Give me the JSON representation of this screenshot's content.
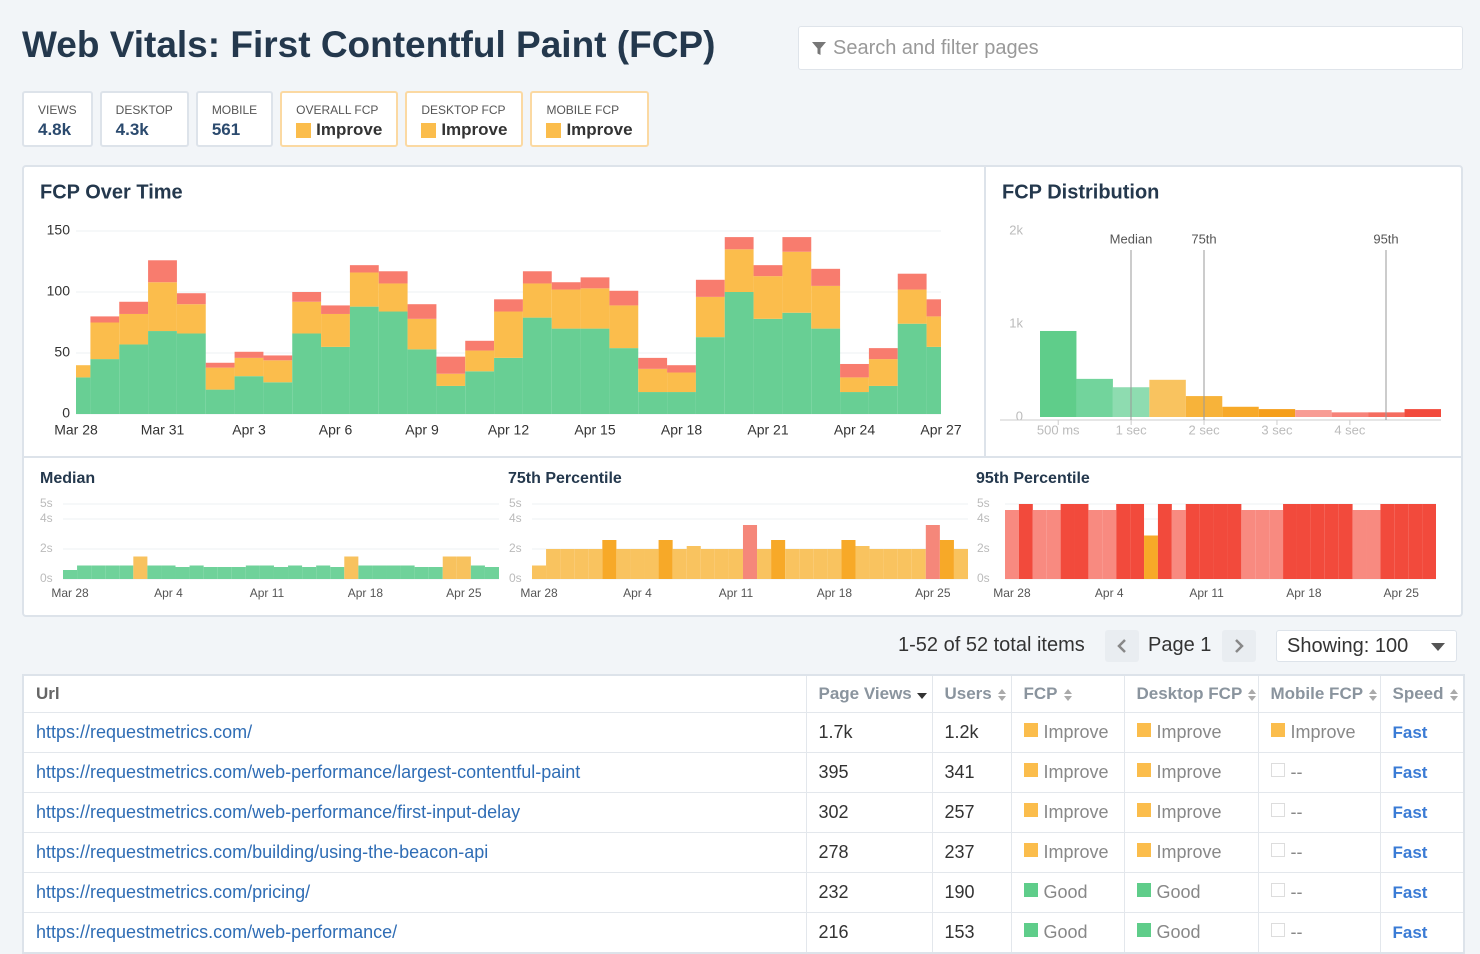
{
  "header": {
    "title": "Web Vitals: First Contentful Paint (FCP)",
    "search_placeholder": "Search and filter pages"
  },
  "stats": [
    {
      "label": "VIEWS",
      "value": "4.8k"
    },
    {
      "label": "DESKTOP",
      "value": "4.3k"
    },
    {
      "label": "MOBILE",
      "value": 561
    },
    {
      "label": "OVERALL FCP",
      "value": "Improve",
      "color": "#fbbd4c"
    },
    {
      "label": "DESKTOP FCP",
      "value": "Improve",
      "color": "#fbbd4c"
    },
    {
      "label": "MOBILE FCP",
      "value": "Improve",
      "color": "#fbbd4c"
    }
  ],
  "charts": [
    {
      "type": "bar",
      "stacked": true,
      "title": "FCP Over Time",
      "grid": true,
      "categories": [
        "Mar 28",
        null,
        null,
        "Mar 31",
        null,
        null,
        "Apr 3",
        null,
        null,
        "Apr 6",
        null,
        null,
        "Apr 9",
        null,
        null,
        "Apr 12",
        null,
        null,
        "Apr 15",
        null,
        null,
        "Apr 18",
        null,
        null,
        "Apr 21",
        null,
        null,
        "Apr 24",
        null,
        null,
        "Apr 27"
      ],
      "series": [
        {
          "color": "#68cf94",
          "values": [
            30,
            45,
            57,
            68,
            66,
            20,
            31,
            26,
            66,
            55,
            88,
            84,
            53,
            23,
            35,
            46,
            79,
            70,
            70,
            54,
            18,
            18,
            63,
            100,
            78,
            83,
            70,
            18,
            23,
            74,
            55
          ]
        },
        {
          "color": "#fbbd4c",
          "values": [
            10,
            30,
            25,
            40,
            24,
            18,
            15,
            18,
            26,
            27,
            28,
            23,
            25,
            10,
            17,
            38,
            28,
            32,
            33,
            35,
            19,
            16,
            33,
            35,
            35,
            50,
            35,
            12,
            22,
            28,
            25
          ]
        },
        {
          "color": "#f87c6e",
          "values": [
            0,
            5,
            10,
            18,
            9,
            4,
            5,
            4,
            8,
            7,
            6,
            10,
            12,
            14,
            8,
            10,
            10,
            6,
            9,
            12,
            9,
            6,
            14,
            10,
            9,
            12,
            14,
            11,
            9,
            13,
            14
          ]
        }
      ],
      "ylim": [
        0,
        150
      ],
      "yticks": [
        0,
        50,
        100,
        150
      ]
    },
    {
      "type": "bar",
      "title": "FCP Distribution",
      "grid": false,
      "categories": [
        "500 ms",
        null,
        "1 sec",
        null,
        "2 sec",
        null,
        "3 sec",
        null,
        "4 sec",
        null,
        null
      ],
      "values": [
        925,
        410,
        320,
        400,
        225,
        110,
        85,
        75,
        50,
        50,
        85
      ],
      "colors": [
        "#5fcd8a",
        "#72d49c",
        "#8edcb0",
        "#f9c35f",
        "#f7b33a",
        "#f7a928",
        "#f59e1a",
        "#f89c94",
        "#f7837a",
        "#f56d60",
        "#f24a3c"
      ],
      "ylim": [
        0,
        2000
      ],
      "yticks": [
        0,
        {
          "value": 1000,
          "label": "1k"
        },
        {
          "value": 2000,
          "label": "2k"
        }
      ],
      "annotations": [
        "Median",
        "75th",
        "95th"
      ]
    },
    {
      "type": "bar",
      "title": "Median",
      "grid": true,
      "categories": [
        "Mar 28",
        null,
        null,
        null,
        null,
        null,
        null,
        "Apr 4",
        null,
        null,
        null,
        null,
        null,
        null,
        "Apr 11",
        null,
        null,
        null,
        null,
        null,
        null,
        "Apr 18",
        null,
        null,
        null,
        null,
        null,
        null,
        "Apr 25",
        null,
        null
      ],
      "values": [
        0.6,
        0.9,
        0.9,
        0.9,
        0.9,
        1.5,
        0.9,
        0.9,
        0.8,
        0.9,
        0.8,
        0.8,
        0.8,
        0.9,
        0.9,
        0.8,
        0.9,
        0.8,
        0.9,
        0.8,
        1.5,
        0.9,
        0.9,
        0.9,
        0.9,
        0.8,
        0.8,
        1.5,
        1.5,
        0.9,
        0.8
      ],
      "colors": [
        "#6fd29a",
        "#6fd29a",
        "#6fd29a",
        "#6fd29a",
        "#6fd29a",
        "#f8c25e",
        "#6fd29a",
        "#6fd29a",
        "#6fd29a",
        "#6fd29a",
        "#6fd29a",
        "#6fd29a",
        "#6fd29a",
        "#6fd29a",
        "#6fd29a",
        "#6fd29a",
        "#6fd29a",
        "#6fd29a",
        "#6fd29a",
        "#6fd29a",
        "#f8c25e",
        "#6fd29a",
        "#6fd29a",
        "#6fd29a",
        "#6fd29a",
        "#6fd29a",
        "#6fd29a",
        "#f8c25e",
        "#f8c25e",
        "#6fd29a",
        "#6fd29a"
      ],
      "ylim": [
        0,
        5
      ],
      "yticks": [
        {
          "value": 0,
          "label": "0s"
        },
        {
          "value": 2,
          "label": "2s"
        },
        {
          "value": 4,
          "label": "4s"
        },
        {
          "value": 5,
          "label": "5s"
        }
      ]
    },
    {
      "type": "bar",
      "title": "75th Percentile",
      "grid": true,
      "categories": [
        "Mar 28",
        null,
        null,
        null,
        null,
        null,
        null,
        "Apr 4",
        null,
        null,
        null,
        null,
        null,
        null,
        "Apr 11",
        null,
        null,
        null,
        null,
        null,
        null,
        "Apr 18",
        null,
        null,
        null,
        null,
        null,
        null,
        "Apr 25",
        null,
        null
      ],
      "values": [
        0.9,
        2.0,
        2.0,
        2.0,
        2.0,
        2.6,
        2.0,
        2.0,
        2.0,
        2.6,
        2.0,
        2.2,
        2.0,
        2.0,
        2.0,
        3.6,
        2.0,
        2.6,
        2.0,
        2.0,
        2.0,
        2.0,
        2.6,
        2.2,
        2.0,
        2.0,
        2.0,
        2.0,
        3.6,
        2.6,
        2.0
      ],
      "colors": [
        "#f9c35f",
        "#f9c35f",
        "#f9c35f",
        "#f9c35f",
        "#f9c35f",
        "#f7a928",
        "#f9c35f",
        "#f9c35f",
        "#f9c35f",
        "#f7a928",
        "#f9c35f",
        "#f9c35f",
        "#f9c35f",
        "#f9c35f",
        "#f9c35f",
        "#f5877a",
        "#f9c35f",
        "#f7a928",
        "#f9c35f",
        "#f9c35f",
        "#f9c35f",
        "#f9c35f",
        "#f7a928",
        "#f9c35f",
        "#f9c35f",
        "#f9c35f",
        "#f9c35f",
        "#f9c35f",
        "#f5877a",
        "#f7a928",
        "#f9c35f"
      ],
      "ylim": [
        0,
        5
      ],
      "yticks": [
        {
          "value": 0,
          "label": "0s"
        },
        {
          "value": 2,
          "label": "2s"
        },
        {
          "value": 4,
          "label": "4s"
        },
        {
          "value": 5,
          "label": "5s"
        }
      ]
    },
    {
      "type": "bar",
      "title": "95th Percentile",
      "grid": true,
      "categories": [
        "Mar 28",
        null,
        null,
        null,
        null,
        null,
        null,
        "Apr 4",
        null,
        null,
        null,
        null,
        null,
        null,
        "Apr 11",
        null,
        null,
        null,
        null,
        null,
        null,
        "Apr 18",
        null,
        null,
        null,
        null,
        null,
        null,
        "Apr 25",
        null,
        null
      ],
      "values": [
        4.6,
        5.0,
        4.6,
        4.6,
        5.0,
        5.0,
        4.6,
        4.6,
        5.0,
        5.0,
        2.9,
        5.0,
        4.6,
        5.0,
        5.0,
        5.0,
        5.0,
        4.6,
        4.6,
        4.6,
        5.0,
        5.0,
        5.0,
        5.0,
        5.0,
        4.6,
        4.6,
        5.0,
        5.0,
        5.0,
        5.0
      ],
      "colors": [
        "#f88a80",
        "#f24a3c",
        "#f88a80",
        "#f88a80",
        "#f24a3c",
        "#f24a3c",
        "#f88a80",
        "#f88a80",
        "#f24a3c",
        "#f24a3c",
        "#f7a928",
        "#f24a3c",
        "#f88a80",
        "#f24a3c",
        "#f24a3c",
        "#f24a3c",
        "#f24a3c",
        "#f88a80",
        "#f88a80",
        "#f88a80",
        "#f24a3c",
        "#f24a3c",
        "#f24a3c",
        "#f24a3c",
        "#f24a3c",
        "#f88a80",
        "#f88a80",
        "#f24a3c",
        "#f24a3c",
        "#f24a3c",
        "#f24a3c"
      ],
      "ylim": [
        0,
        5
      ],
      "yticks": [
        {
          "value": 0,
          "label": "0s"
        },
        {
          "value": 2,
          "label": "2s"
        },
        {
          "value": 4,
          "label": "4s"
        },
        {
          "value": 5,
          "label": "5s"
        }
      ]
    }
  ],
  "pagination": {
    "summary": "1-52 of 52 total items",
    "page": "Page 1",
    "showing": "Showing: 100"
  },
  "table": {
    "columns": [
      {
        "label": "Url"
      },
      {
        "label": "Page Views",
        "sort": "desc"
      },
      {
        "label": "Users",
        "sort": "both"
      },
      {
        "label": "FCP",
        "sort": "both"
      },
      {
        "label": "Desktop FCP",
        "sort": "both"
      },
      {
        "label": "Mobile FCP",
        "sort": "both"
      },
      {
        "label": "Speed",
        "sort": "both"
      }
    ],
    "rows": [
      [
        "https://requestmetrics.com/",
        "1.7k",
        "1.2k",
        {
          "text": "Improve",
          "color": "#fbbd4c"
        },
        {
          "text": "Improve",
          "color": "#fbbd4c"
        },
        {
          "text": "Improve",
          "color": "#fbbd4c"
        },
        "Fast"
      ],
      [
        "https://requestmetrics.com/web-performance/largest-contentful-paint",
        395,
        341,
        {
          "text": "Improve",
          "color": "#fbbd4c"
        },
        {
          "text": "Improve",
          "color": "#fbbd4c"
        },
        {
          "text": "--"
        },
        "Fast"
      ],
      [
        "https://requestmetrics.com/web-performance/first-input-delay",
        302,
        257,
        {
          "text": "Improve",
          "color": "#fbbd4c"
        },
        {
          "text": "Improve",
          "color": "#fbbd4c"
        },
        {
          "text": "--"
        },
        "Fast"
      ],
      [
        "https://requestmetrics.com/building/using-the-beacon-api",
        278,
        237,
        {
          "text": "Improve",
          "color": "#fbbd4c"
        },
        {
          "text": "Improve",
          "color": "#fbbd4c"
        },
        {
          "text": "--"
        },
        "Fast"
      ],
      [
        "https://requestmetrics.com/pricing/",
        232,
        190,
        {
          "text": "Good",
          "color": "#5fcd8a"
        },
        {
          "text": "Good",
          "color": "#5fcd8a"
        },
        {
          "text": "--"
        },
        "Fast"
      ],
      [
        "https://requestmetrics.com/web-performance/",
        216,
        153,
        {
          "text": "Good",
          "color": "#5fcd8a"
        },
        {
          "text": "Good",
          "color": "#5fcd8a"
        },
        {
          "text": "--"
        },
        "Fast"
      ]
    ]
  }
}
